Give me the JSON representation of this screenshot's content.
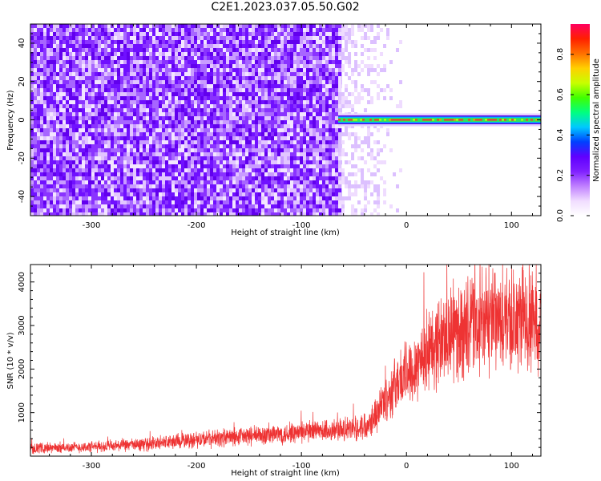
{
  "title": "C2E1.2023.037.05.50.G02",
  "chart_data": [
    {
      "type": "heatmap",
      "xlabel": "Height of straight line (km)",
      "ylabel": "Frequency (Hz)",
      "xlim": [
        -358,
        128
      ],
      "ylim": [
        -50,
        50
      ],
      "x_ticks": [
        -300,
        -200,
        -100,
        0,
        100
      ],
      "y_ticks": [
        -40,
        -20,
        0,
        20,
        40
      ],
      "colorbar": {
        "label": "Normalized spectral amplitude",
        "range": [
          0,
          0.95
        ],
        "ticks": [
          0.0,
          0.2,
          0.4,
          0.6,
          0.8
        ],
        "colors": [
          "#ffffff",
          "#f0dcff",
          "#c080ff",
          "#8020ff",
          "#6000ff",
          "#0040ff",
          "#00c8ff",
          "#00ff80",
          "#40ff00",
          "#c8ff00",
          "#ffd000",
          "#ff7000",
          "#ff2000",
          "#ff0060"
        ]
      },
      "features": {
        "noise_region_x": [
          -358,
          -65
        ],
        "sparse_region_x": [
          -65,
          -5
        ],
        "signal_band_x": [
          -65,
          128
        ],
        "signal_band_frequency": 0
      }
    },
    {
      "type": "line",
      "xlabel": "Height of straight line (km)",
      "ylabel": "SNR (10 * v/v)",
      "xlim": [
        -358,
        128
      ],
      "ylim": [
        0,
        4400
      ],
      "x_ticks": [
        -300,
        -200,
        -100,
        0,
        100
      ],
      "y_ticks": [
        1000,
        2000,
        3000,
        4000
      ],
      "line_color": "#ee3333",
      "trend": {
        "x": [
          -358,
          -300,
          -250,
          -200,
          -150,
          -100,
          -50,
          -40,
          -30,
          -20,
          -10,
          0,
          20,
          40,
          60,
          80,
          100,
          128
        ],
        "y": [
          180,
          210,
          270,
          380,
          460,
          540,
          620,
          700,
          950,
          1300,
          1650,
          1900,
          2400,
          2800,
          2950,
          3050,
          3100,
          3150
        ]
      }
    }
  ]
}
